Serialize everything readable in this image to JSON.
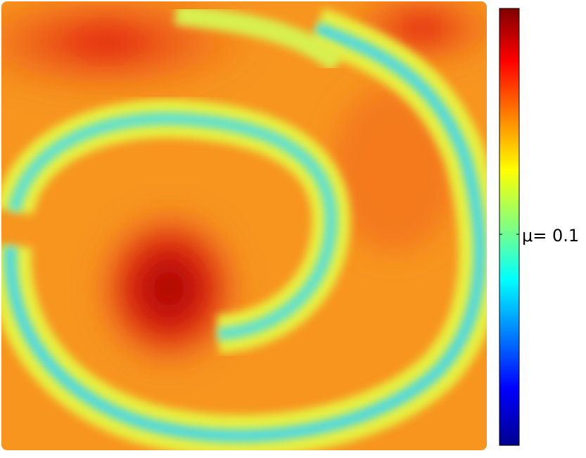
{
  "chart_data": {
    "type": "scatter",
    "colorbar_label": "μ= 0.1"
  }
}
